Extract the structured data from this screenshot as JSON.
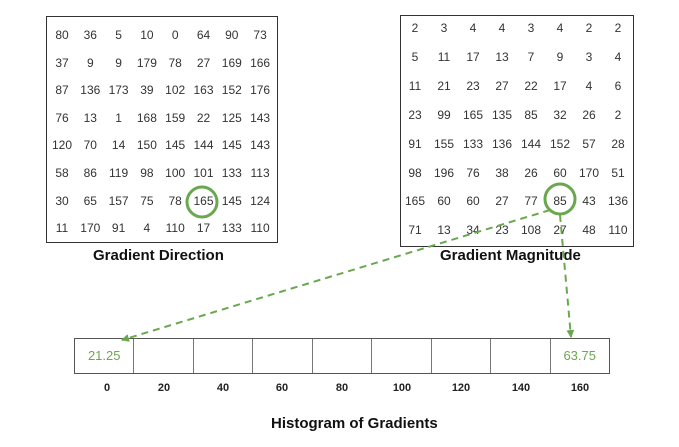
{
  "gradient_direction": {
    "caption": "Gradient Direction",
    "rows": [
      [
        "80",
        "36",
        "5",
        "10",
        "0",
        "64",
        "90",
        "73"
      ],
      [
        "37",
        "9",
        "9",
        "179",
        "78",
        "27",
        "169",
        "166"
      ],
      [
        "87",
        "136",
        "173",
        "39",
        "102",
        "163",
        "152",
        "176"
      ],
      [
        "76",
        "13",
        "1",
        "168",
        "159",
        "22",
        "125",
        "143"
      ],
      [
        "120",
        "70",
        "14",
        "150",
        "145",
        "144",
        "145",
        "143"
      ],
      [
        "58",
        "86",
        "119",
        "98",
        "100",
        "101",
        "133",
        "113"
      ],
      [
        "30",
        "65",
        "157",
        "75",
        "78",
        "165",
        "145",
        "124"
      ],
      [
        "11",
        "170",
        "91",
        "4",
        "110",
        "17",
        "133",
        "110"
      ]
    ],
    "highlight": {
      "row": 6,
      "col": 5
    }
  },
  "gradient_magnitude": {
    "caption": "Gradient Magnitude",
    "rows": [
      [
        "2",
        "3",
        "4",
        "4",
        "3",
        "4",
        "2",
        "2"
      ],
      [
        "5",
        "11",
        "17",
        "13",
        "7",
        "9",
        "3",
        "4"
      ],
      [
        "11",
        "21",
        "23",
        "27",
        "22",
        "17",
        "4",
        "6"
      ],
      [
        "23",
        "99",
        "165",
        "135",
        "85",
        "32",
        "26",
        "2"
      ],
      [
        "91",
        "155",
        "133",
        "136",
        "144",
        "152",
        "57",
        "28"
      ],
      [
        "98",
        "196",
        "76",
        "38",
        "26",
        "60",
        "170",
        "51"
      ],
      [
        "165",
        "60",
        "60",
        "27",
        "77",
        "85",
        "43",
        "136"
      ],
      [
        "71",
        "13",
        "34",
        "23",
        "108",
        "27",
        "48",
        "110"
      ]
    ],
    "highlight": {
      "row": 6,
      "col": 5
    }
  },
  "histogram": {
    "title": "Histogram of Gradients",
    "bins": [
      "21.25",
      "",
      "",
      "",
      "",
      "",
      "",
      "",
      "63.75"
    ],
    "ticks": [
      "0",
      "20",
      "40",
      "60",
      "80",
      "100",
      "120",
      "140",
      "160"
    ]
  },
  "colors": {
    "accent": "#6aa84f",
    "border": "#333333"
  }
}
